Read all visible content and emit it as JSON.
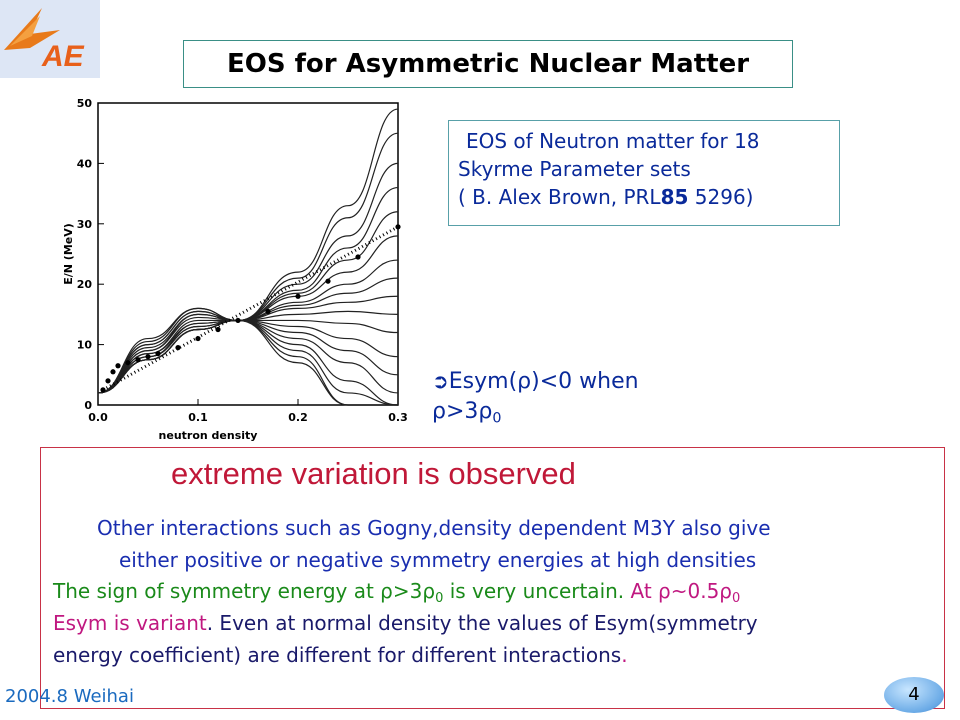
{
  "slide": {
    "title": "EOS for Asymmetric Nuclear Matter",
    "footer": "2004.8 Weihai",
    "page_number": "4"
  },
  "reference": {
    "line1": "EOS of Neutron matter for 18",
    "line2": "Skyrme Parameter sets",
    "line3_pre": "( B. Alex Brown, PRL",
    "line3_bold": "85",
    "line3_post": " 5296)"
  },
  "esym_note": {
    "line1": "Esym(ρ)<0 when",
    "line2_pre": "ρ>3ρ",
    "line2_sub": "0"
  },
  "body": {
    "heading": "extreme   variation  is  observed",
    "para1_line1": "Other interactions such as Gogny,density dependent  M3Y also give",
    "para1_line2": "either positive or negative  symmetry energies at  high densities",
    "green_line_pre": "The sign of symmetry energy at ρ>3ρ",
    "green_line_sub": "0",
    "green_line_post": " is very uncertain. ",
    "magenta_at": "At  ρ~0.5ρ",
    "magenta_sub": "0",
    "magenta_line2": "Esym is variant",
    "ink_line2": ". Even at normal density the values of Esym(symmetry",
    "ink_line3": "energy coefficient) are different for different interactions",
    "magenta_period": "."
  },
  "colors": {
    "title_border": "#3a8f86",
    "heading_red": "#c01838",
    "blue_text": "#1a2eb0",
    "green_text": "#1a8a1a",
    "magenta_text": "#c01880",
    "box_red": "#c83246"
  },
  "chart_data": {
    "type": "line",
    "xlabel": "neutron density",
    "ylabel": "E/N (MeV)",
    "xlim": [
      0.0,
      0.3
    ],
    "ylim": [
      0,
      50
    ],
    "xticks": [
      "0.0",
      "0.1",
      "0.2",
      "0.3"
    ],
    "yticks": [
      "0",
      "10",
      "20",
      "30",
      "40",
      "50"
    ],
    "curve_samples_x": [
      0.0,
      0.05,
      0.1,
      0.14,
      0.2,
      0.25,
      0.3
    ],
    "series": [
      {
        "values": [
          2,
          7.5,
          12.5,
          14,
          22,
          33,
          49
        ]
      },
      {
        "values": [
          2,
          7.5,
          12.5,
          14,
          21,
          31,
          45
        ]
      },
      {
        "values": [
          2,
          7.5,
          12.5,
          14,
          20,
          28,
          40
        ]
      },
      {
        "values": [
          2,
          7.5,
          12.5,
          14,
          19,
          26,
          36
        ]
      },
      {
        "values": [
          2,
          7.5,
          12.5,
          14,
          18.5,
          24,
          32
        ]
      },
      {
        "values": [
          2,
          7.5,
          12.5,
          14,
          18,
          22,
          28
        ]
      },
      {
        "values": [
          2,
          8,
          13,
          14,
          17,
          20,
          24
        ]
      },
      {
        "values": [
          2,
          8,
          13,
          14,
          16.5,
          18.5,
          21
        ]
      },
      {
        "values": [
          2,
          8,
          13.5,
          14,
          16,
          17,
          18
        ]
      },
      {
        "values": [
          2,
          8.5,
          13.5,
          14,
          15,
          15.5,
          15
        ]
      },
      {
        "values": [
          2,
          8.5,
          14,
          14,
          14,
          13.5,
          12
        ]
      },
      {
        "values": [
          2,
          9,
          14.5,
          14,
          13,
          11,
          8
        ]
      },
      {
        "values": [
          2,
          9,
          15,
          14,
          12,
          9,
          5
        ]
      },
      {
        "values": [
          2,
          9.5,
          15,
          14,
          11,
          7,
          2
        ]
      },
      {
        "values": [
          2,
          10,
          15.5,
          14,
          10,
          4,
          0
        ]
      },
      {
        "values": [
          2,
          10,
          15.5,
          14,
          9,
          2,
          0
        ]
      },
      {
        "values": [
          2,
          10.5,
          16,
          14,
          8,
          0,
          0
        ]
      },
      {
        "values": [
          2,
          11,
          16,
          14,
          7,
          0,
          0
        ]
      }
    ],
    "points": {
      "x": [
        0.005,
        0.01,
        0.015,
        0.02,
        0.03,
        0.04,
        0.05,
        0.06,
        0.08,
        0.1,
        0.12,
        0.14,
        0.17,
        0.2,
        0.23,
        0.26,
        0.3
      ],
      "y": [
        2.5,
        4,
        5.5,
        6.5,
        7,
        7.5,
        8,
        8.5,
        9.5,
        11,
        12.5,
        14,
        15.5,
        18,
        20.5,
        24.5,
        29.5
      ]
    }
  }
}
